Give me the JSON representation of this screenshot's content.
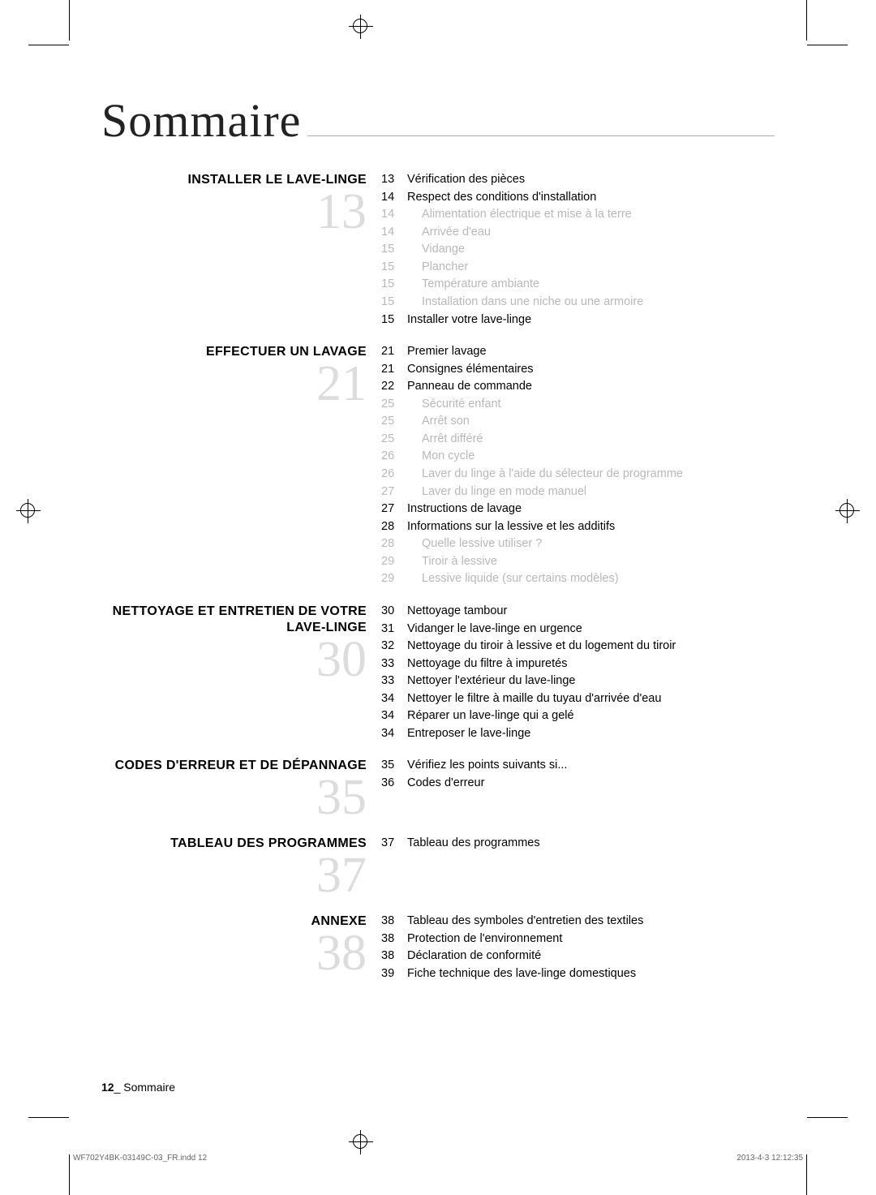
{
  "title": "Sommaire",
  "sections": [
    {
      "heading": "INSTALLER LE LAVE-LINGE",
      "bignum": "13",
      "entries": [
        {
          "pg": "13",
          "txt": "Vérification des pièces",
          "sub": false
        },
        {
          "pg": "14",
          "txt": "Respect des conditions d'installation",
          "sub": false
        },
        {
          "pg": "14",
          "txt": "Alimentation électrique et mise à la terre",
          "sub": true
        },
        {
          "pg": "14",
          "txt": "Arrivée d'eau",
          "sub": true
        },
        {
          "pg": "15",
          "txt": "Vidange",
          "sub": true
        },
        {
          "pg": "15",
          "txt": "Plancher",
          "sub": true
        },
        {
          "pg": "15",
          "txt": "Température ambiante",
          "sub": true
        },
        {
          "pg": "15",
          "txt": "Installation dans une niche ou une armoire",
          "sub": true
        },
        {
          "pg": "15",
          "txt": "Installer votre lave-linge",
          "sub": false
        }
      ]
    },
    {
      "heading": "EFFECTUER UN LAVAGE",
      "bignum": "21",
      "entries": [
        {
          "pg": "21",
          "txt": "Premier lavage",
          "sub": false
        },
        {
          "pg": "21",
          "txt": "Consignes élémentaires",
          "sub": false
        },
        {
          "pg": "22",
          "txt": "Panneau de commande",
          "sub": false
        },
        {
          "pg": "25",
          "txt": "Sécurité enfant",
          "sub": true
        },
        {
          "pg": "25",
          "txt": "Arrêt son",
          "sub": true
        },
        {
          "pg": "25",
          "txt": "Arrêt différé",
          "sub": true
        },
        {
          "pg": "26",
          "txt": "Mon cycle",
          "sub": true
        },
        {
          "pg": "26",
          "txt": "Laver du linge à l'aide du sélecteur de programme",
          "sub": true
        },
        {
          "pg": "27",
          "txt": "Laver du linge en mode manuel",
          "sub": true
        },
        {
          "pg": "27",
          "txt": "Instructions de lavage",
          "sub": false
        },
        {
          "pg": "28",
          "txt": "Informations sur la lessive et les additifs",
          "sub": false
        },
        {
          "pg": "28",
          "txt": "Quelle lessive utiliser ?",
          "sub": true
        },
        {
          "pg": "29",
          "txt": "Tiroir à lessive",
          "sub": true
        },
        {
          "pg": "29",
          "txt": "Lessive liquide (sur certains modèles)",
          "sub": true
        }
      ]
    },
    {
      "heading": "NETTOYAGE ET ENTRETIEN DE VOTRE LAVE-LINGE",
      "bignum": "30",
      "entries": [
        {
          "pg": "30",
          "txt": "Nettoyage tambour",
          "sub": false
        },
        {
          "pg": "31",
          "txt": "Vidanger le lave-linge en urgence",
          "sub": false
        },
        {
          "pg": "32",
          "txt": "Nettoyage du tiroir à lessive et du logement du tiroir",
          "sub": false
        },
        {
          "pg": "33",
          "txt": "Nettoyage du filtre à impuretés",
          "sub": false
        },
        {
          "pg": "33",
          "txt": "Nettoyer l'extérieur du lave-linge",
          "sub": false
        },
        {
          "pg": "34",
          "txt": "Nettoyer le filtre à maille du tuyau d'arrivée d'eau",
          "sub": false
        },
        {
          "pg": "34",
          "txt": "Réparer un lave-linge qui a gelé",
          "sub": false
        },
        {
          "pg": "34",
          "txt": "Entreposer le lave-linge",
          "sub": false
        }
      ]
    },
    {
      "heading": "CODES D'ERREUR ET DE DÉPANNAGE",
      "bignum": "35",
      "entries": [
        {
          "pg": "35",
          "txt": "Vérifiez les points suivants si...",
          "sub": false
        },
        {
          "pg": "36",
          "txt": "Codes d'erreur",
          "sub": false
        }
      ]
    },
    {
      "heading": "TABLEAU DES PROGRAMMES",
      "bignum": "37",
      "entries": [
        {
          "pg": "37",
          "txt": "Tableau des programmes",
          "sub": false
        }
      ]
    },
    {
      "heading": "ANNEXE",
      "bignum": "38",
      "entries": [
        {
          "pg": "38",
          "txt": "Tableau des symboles d'entretien des textiles",
          "sub": false
        },
        {
          "pg": "38",
          "txt": "Protection de l'environnement",
          "sub": false
        },
        {
          "pg": "38",
          "txt": "Déclaration de conformité",
          "sub": false
        },
        {
          "pg": "39",
          "txt": "Fiche technique des lave-linge domestiques",
          "sub": false
        }
      ]
    }
  ],
  "footer": {
    "pagenum": "12",
    "label": "Sommaire"
  },
  "imprint": {
    "left": "WF702Y4BK-03149C-03_FR.indd   12",
    "right": "2013-4-3   12:12:35"
  }
}
